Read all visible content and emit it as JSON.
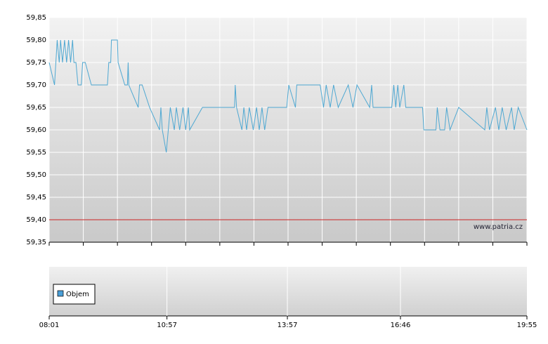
{
  "chart_data": {
    "type": "line",
    "x": [
      "08:01",
      "08:09",
      "08:13",
      "08:16",
      "08:18",
      "08:21",
      "08:24",
      "08:27",
      "08:30",
      "08:33",
      "08:36",
      "08:38",
      "08:41",
      "08:44",
      "08:49",
      "08:51",
      "08:55",
      "09:04",
      "09:28",
      "09:30",
      "09:33",
      "09:34",
      "09:43",
      "09:44",
      "09:54",
      "09:58",
      "09:59",
      "10:00",
      "10:14",
      "10:16",
      "10:20",
      "10:31",
      "10:46",
      "10:48",
      "10:50",
      "10:56",
      "11:02",
      "11:08",
      "11:11",
      "11:16",
      "11:21",
      "11:25",
      "11:29",
      "11:31",
      "11:50",
      "12:38",
      "12:39",
      "12:41",
      "12:49",
      "12:52",
      "12:56",
      "13:00",
      "13:06",
      "13:11",
      "13:15",
      "13:19",
      "13:23",
      "13:28",
      "13:56",
      "13:59",
      "14:09",
      "14:11",
      "14:46",
      "14:51",
      "14:55",
      "15:01",
      "15:06",
      "15:13",
      "15:28",
      "15:35",
      "15:41",
      "16:00",
      "16:03",
      "16:05",
      "16:33",
      "16:36",
      "16:39",
      "16:42",
      "16:45",
      "16:51",
      "16:54",
      "17:19",
      "17:21",
      "17:39",
      "17:41",
      "17:45",
      "17:52",
      "17:55",
      "18:00",
      "18:13",
      "18:52",
      "18:55",
      "18:59",
      "19:08",
      "19:13",
      "19:18",
      "19:24",
      "19:32",
      "19:36",
      "19:42",
      "19:55"
    ],
    "values": [
      59.75,
      59.7,
      59.8,
      59.75,
      59.8,
      59.75,
      59.8,
      59.75,
      59.8,
      59.75,
      59.8,
      59.75,
      59.75,
      59.7,
      59.7,
      59.75,
      59.75,
      59.7,
      59.7,
      59.75,
      59.75,
      59.8,
      59.8,
      59.75,
      59.7,
      59.7,
      59.75,
      59.7,
      59.65,
      59.7,
      59.7,
      59.65,
      59.6,
      59.65,
      59.6,
      59.55,
      59.65,
      59.6,
      59.65,
      59.6,
      59.65,
      59.6,
      59.65,
      59.6,
      59.65,
      59.65,
      59.7,
      59.65,
      59.6,
      59.65,
      59.6,
      59.65,
      59.6,
      59.65,
      59.6,
      59.65,
      59.6,
      59.65,
      59.65,
      59.7,
      59.65,
      59.7,
      59.7,
      59.65,
      59.7,
      59.65,
      59.7,
      59.65,
      59.7,
      59.65,
      59.7,
      59.65,
      59.7,
      59.65,
      59.65,
      59.7,
      59.65,
      59.7,
      59.65,
      59.7,
      59.65,
      59.65,
      59.6,
      59.6,
      59.65,
      59.6,
      59.6,
      59.65,
      59.6,
      59.65,
      59.6,
      59.65,
      59.6,
      59.65,
      59.6,
      59.65,
      59.6,
      59.65,
      59.6,
      59.65,
      59.6
    ],
    "color": "#4fa8d2",
    "xlim": [
      "08:01",
      "19:55"
    ],
    "xticks": [
      "08:01",
      "10:57",
      "13:57",
      "16:46",
      "19:55"
    ],
    "ylim": [
      59.35,
      59.85
    ],
    "yticks": [
      {
        "value": 59.35,
        "label": "59,35"
      },
      {
        "value": 59.4,
        "label": "59,40"
      },
      {
        "value": 59.45,
        "label": "59,45"
      },
      {
        "value": 59.5,
        "label": "59,50"
      },
      {
        "value": 59.55,
        "label": "59,55"
      },
      {
        "value": 59.6,
        "label": "59,60"
      },
      {
        "value": 59.65,
        "label": "59,65"
      },
      {
        "value": 59.7,
        "label": "59,70"
      },
      {
        "value": 59.75,
        "label": "59,75"
      },
      {
        "value": 59.8,
        "label": "59,80"
      },
      {
        "value": 59.85,
        "label": "59,85"
      }
    ],
    "reference_line": {
      "value": 59.4,
      "color": "#cc2222"
    },
    "watermark": "www.patria.cz",
    "grid": true,
    "volume": {
      "name": "Objem",
      "color": "#4a9fd8"
    }
  }
}
